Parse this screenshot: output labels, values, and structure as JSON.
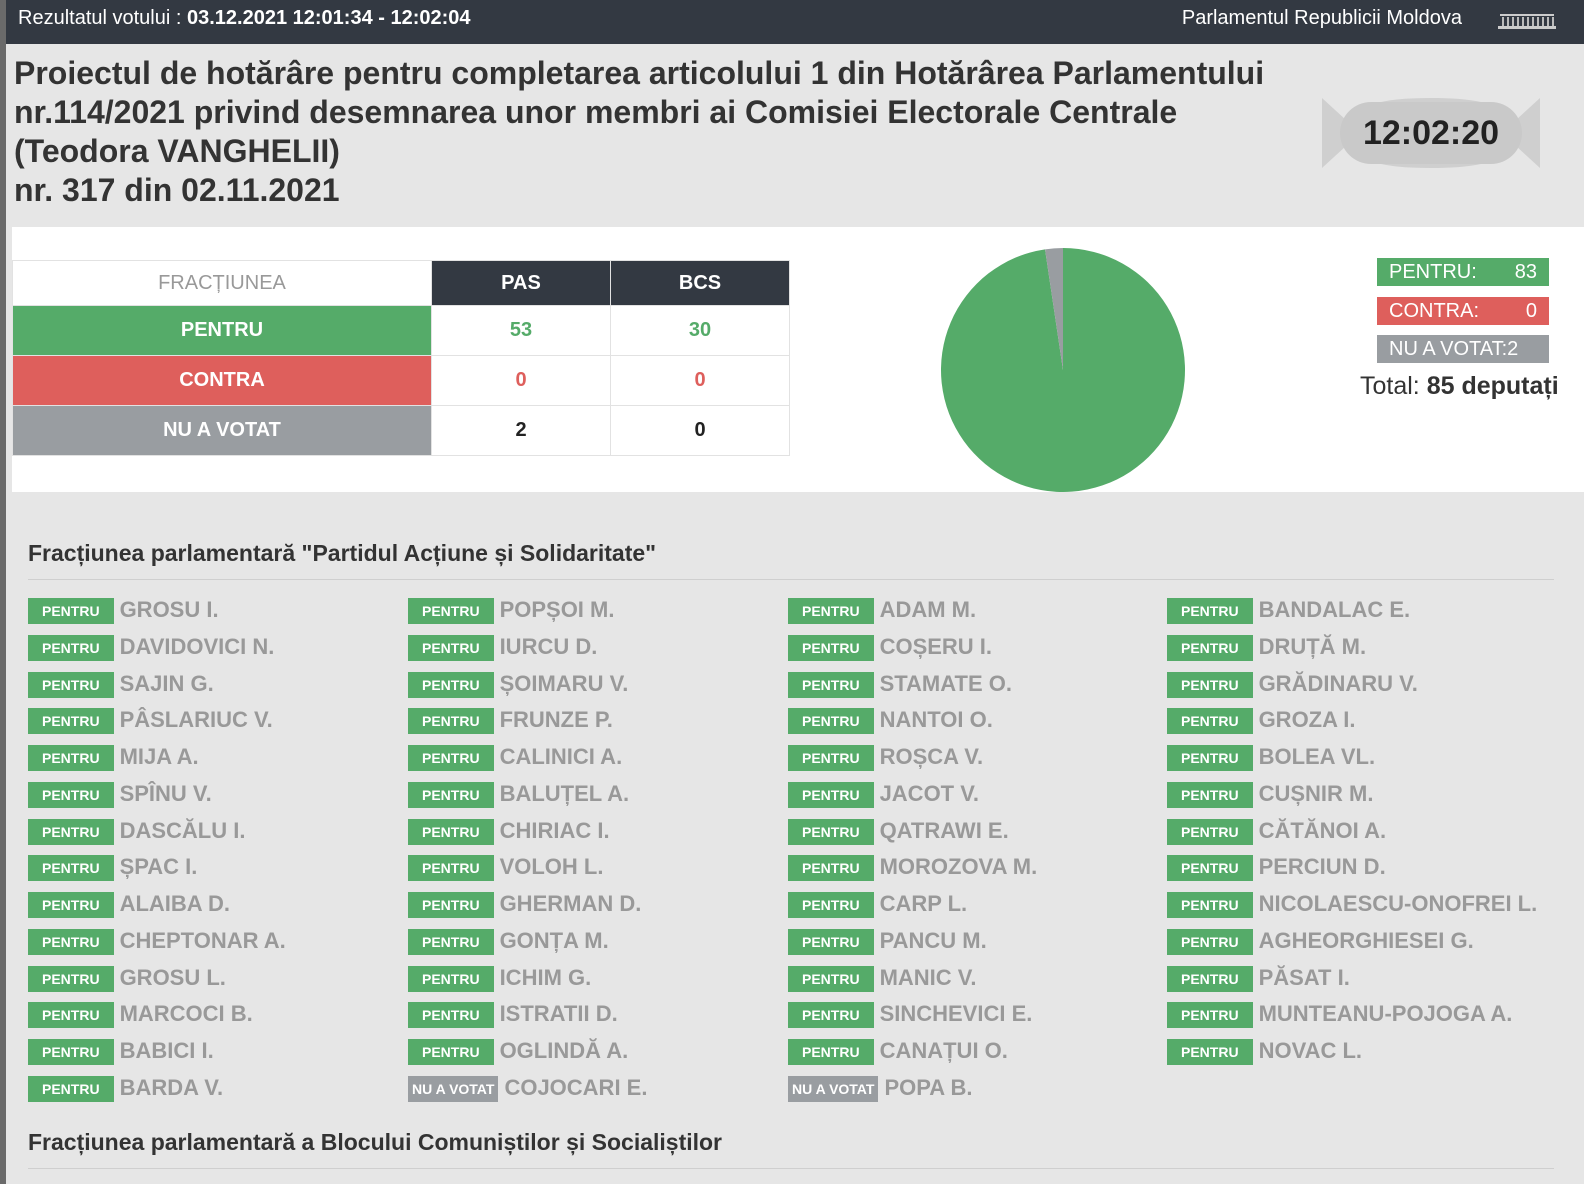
{
  "header": {
    "vote_label": "Rezultatul votului : ",
    "vote_time": "03.12.2021 12:01:34 - 12:02:04",
    "parliament": "Parlamentul Republicii Moldova"
  },
  "title_lines": [
    "Proiectul de hotărâre pentru completarea articolului 1 din Hotărârea Parlamentului",
    "nr.114/2021 privind desemnarea unor membri ai Comisiei Electorale Centrale",
    "(Teodora VANGHELII)",
    "nr. 317 din 02.11.2021"
  ],
  "clock": "12:02:20",
  "table": {
    "header_label": "FRACȚIUNEA",
    "factions": [
      "PAS",
      "BCS"
    ],
    "rows": [
      {
        "label": "PENTRU",
        "values": [
          "53",
          "30"
        ]
      },
      {
        "label": "CONTRA",
        "values": [
          "0",
          "0"
        ]
      },
      {
        "label": "NU A VOTAT",
        "values": [
          "2",
          "0"
        ]
      }
    ]
  },
  "chart_data": {
    "type": "pie",
    "labels": [
      "PENTRU",
      "CONTRA",
      "NU A VOTAT"
    ],
    "values": [
      83,
      0,
      2
    ],
    "colors": [
      "#55ab69",
      "#de5f5c",
      "#999da1"
    ]
  },
  "legend": {
    "pentru_label": "PENTRU:",
    "pentru_value": "83",
    "contra_label": "CONTRA:",
    "contra_value": "0",
    "nuvot_label": "NU A VOTAT:2",
    "total_label": "Total: ",
    "total_value": "85 deputați"
  },
  "factions": [
    {
      "title": "Fracțiunea parlamentară \"Partidul Acțiune și Solidaritate\""
    },
    {
      "title": "Fracțiunea parlamentară a Blocului Comuniștilor și Socialiștilor"
    }
  ],
  "deputies_columns": [
    [
      {
        "vote": "PENTRU",
        "name": "GROSU I."
      },
      {
        "vote": "PENTRU",
        "name": "DAVIDOVICI N."
      },
      {
        "vote": "PENTRU",
        "name": "SAJIN G."
      },
      {
        "vote": "PENTRU",
        "name": "PÂSLARIUC V."
      },
      {
        "vote": "PENTRU",
        "name": "MIJA A."
      },
      {
        "vote": "PENTRU",
        "name": "SPÎNU V."
      },
      {
        "vote": "PENTRU",
        "name": "DASCĂLU I."
      },
      {
        "vote": "PENTRU",
        "name": "ȘPAC I."
      },
      {
        "vote": "PENTRU",
        "name": "ALAIBA D."
      },
      {
        "vote": "PENTRU",
        "name": "CHEPTONAR A."
      },
      {
        "vote": "PENTRU",
        "name": "GROSU L."
      },
      {
        "vote": "PENTRU",
        "name": "MARCOCI B."
      },
      {
        "vote": "PENTRU",
        "name": "BABICI I."
      },
      {
        "vote": "PENTRU",
        "name": "BARDA V."
      }
    ],
    [
      {
        "vote": "PENTRU",
        "name": "POPȘOI M."
      },
      {
        "vote": "PENTRU",
        "name": "IURCU D."
      },
      {
        "vote": "PENTRU",
        "name": "ȘOIMARU V."
      },
      {
        "vote": "PENTRU",
        "name": "FRUNZE P."
      },
      {
        "vote": "PENTRU",
        "name": "CALINICI A."
      },
      {
        "vote": "PENTRU",
        "name": "BALUȚEL A."
      },
      {
        "vote": "PENTRU",
        "name": "CHIRIAC I."
      },
      {
        "vote": "PENTRU",
        "name": "VOLOH L."
      },
      {
        "vote": "PENTRU",
        "name": "GHERMAN D."
      },
      {
        "vote": "PENTRU",
        "name": "GONȚA M."
      },
      {
        "vote": "PENTRU",
        "name": "ICHIM G."
      },
      {
        "vote": "PENTRU",
        "name": "ISTRATII D."
      },
      {
        "vote": "PENTRU",
        "name": "OGLINDĂ A."
      },
      {
        "vote": "NU A VOTAT",
        "name": "COJOCARI E."
      }
    ],
    [
      {
        "vote": "PENTRU",
        "name": "ADAM M."
      },
      {
        "vote": "PENTRU",
        "name": "COȘERU I."
      },
      {
        "vote": "PENTRU",
        "name": "STAMATE O."
      },
      {
        "vote": "PENTRU",
        "name": "NANTOI O."
      },
      {
        "vote": "PENTRU",
        "name": "ROȘCA V."
      },
      {
        "vote": "PENTRU",
        "name": "JACOT V."
      },
      {
        "vote": "PENTRU",
        "name": "QATRAWI E."
      },
      {
        "vote": "PENTRU",
        "name": "MOROZOVA M."
      },
      {
        "vote": "PENTRU",
        "name": "CARP L."
      },
      {
        "vote": "PENTRU",
        "name": "PANCU M."
      },
      {
        "vote": "PENTRU",
        "name": "MANIC V."
      },
      {
        "vote": "PENTRU",
        "name": "SINCHEVICI E."
      },
      {
        "vote": "PENTRU",
        "name": "CANAȚUI O."
      },
      {
        "vote": "NU A VOTAT",
        "name": "POPA B."
      }
    ],
    [
      {
        "vote": "PENTRU",
        "name": "BANDALAC E."
      },
      {
        "vote": "PENTRU",
        "name": "DRUȚĂ M."
      },
      {
        "vote": "PENTRU",
        "name": "GRĂDINARU V."
      },
      {
        "vote": "PENTRU",
        "name": "GROZA I."
      },
      {
        "vote": "PENTRU",
        "name": "BOLEA VL."
      },
      {
        "vote": "PENTRU",
        "name": "CUȘNIR M."
      },
      {
        "vote": "PENTRU",
        "name": "CĂTĂNOI A."
      },
      {
        "vote": "PENTRU",
        "name": "PERCIUN D."
      },
      {
        "vote": "PENTRU",
        "name": "NICOLAESCU-ONOFREI L."
      },
      {
        "vote": "PENTRU",
        "name": "AGHEORGHIESEI G."
      },
      {
        "vote": "PENTRU",
        "name": "PĂSAT I."
      },
      {
        "vote": "PENTRU",
        "name": "MUNTEANU-POJOGA A."
      },
      {
        "vote": "PENTRU",
        "name": "NOVAC L."
      }
    ]
  ]
}
